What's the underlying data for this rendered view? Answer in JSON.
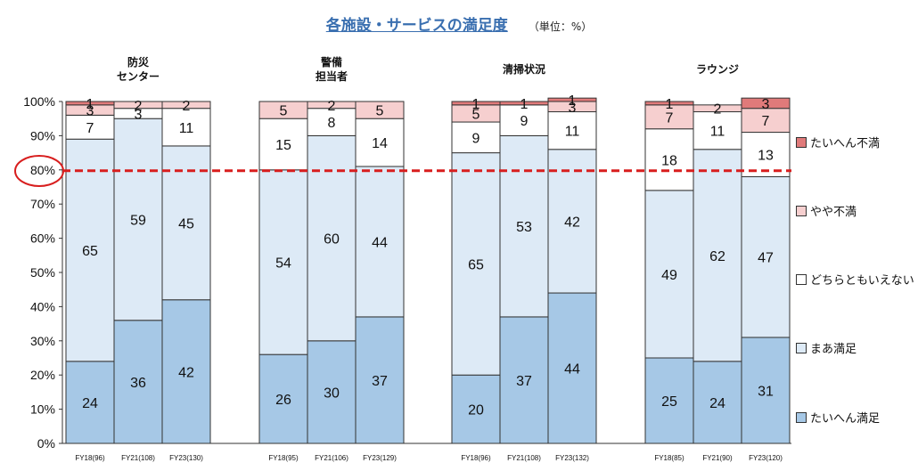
{
  "title": "各施設・サービスの満足度",
  "unit": "（単位：%）",
  "reference_line": {
    "value": 80,
    "label": "80%"
  },
  "colors": {
    "たいへん満足": "#a6c8e6",
    "まあ満足": "#ddeaf6",
    "どちらともいえない": "#ffffff",
    "やや不満": "#f6cfcf",
    "たいへん不満": "#e07a7a",
    "reference_line": "#d81e1e",
    "title": "#3a6fb0"
  },
  "legend": [
    "たいへん不満",
    "やや不満",
    "どちらともいえない",
    "まあ満足",
    "たいへん満足"
  ],
  "chart_data": {
    "type": "bar",
    "stacked": true,
    "title": "各施設・サービスの満足度",
    "ylabel": "",
    "ylim": [
      0,
      100
    ],
    "yticks": [
      "0%",
      "10%",
      "20%",
      "30%",
      "40%",
      "50%",
      "60%",
      "70%",
      "80%",
      "90%",
      "100%"
    ],
    "series_order": [
      "たいへん満足",
      "まあ満足",
      "どちらともいえない",
      "やや不満",
      "たいへん不満"
    ],
    "groups": [
      {
        "name": "防災センター",
        "label_lines": [
          "防災",
          "センター"
        ],
        "bars": [
          {
            "label": "FY18(96)",
            "values": [
              24,
              65,
              7,
              3,
              1
            ]
          },
          {
            "label": "FY21(108)",
            "values": [
              36,
              59,
              3,
              2,
              0
            ]
          },
          {
            "label": "FY23(130)",
            "values": [
              42,
              45,
              11,
              2,
              0
            ]
          }
        ]
      },
      {
        "name": "警備担当者",
        "label_lines": [
          "警備",
          "担当者"
        ],
        "bars": [
          {
            "label": "FY18(95)",
            "values": [
              26,
              54,
              15,
              5,
              0
            ]
          },
          {
            "label": "FY21(106)",
            "values": [
              30,
              60,
              8,
              2,
              0
            ]
          },
          {
            "label": "FY23(129)",
            "values": [
              37,
              44,
              14,
              5,
              0
            ]
          }
        ]
      },
      {
        "name": "清掃状況",
        "label_lines": [
          "清掃状況"
        ],
        "bars": [
          {
            "label": "FY18(96)",
            "values": [
              20,
              65,
              9,
              5,
              1
            ]
          },
          {
            "label": "FY21(108)",
            "values": [
              37,
              53,
              9,
              0,
              1
            ]
          },
          {
            "label": "FY23(132)",
            "values": [
              44,
              42,
              11,
              3,
              1
            ]
          }
        ]
      },
      {
        "name": "ラウンジ",
        "label_lines": [
          "ラウンジ"
        ],
        "bars": [
          {
            "label": "FY18(85)",
            "values": [
              25,
              49,
              18,
              7,
              1
            ]
          },
          {
            "label": "FY21(90)",
            "values": [
              24,
              62,
              11,
              2,
              0
            ]
          },
          {
            "label": "FY23(120)",
            "values": [
              31,
              47,
              13,
              7,
              3
            ]
          }
        ]
      }
    ]
  }
}
